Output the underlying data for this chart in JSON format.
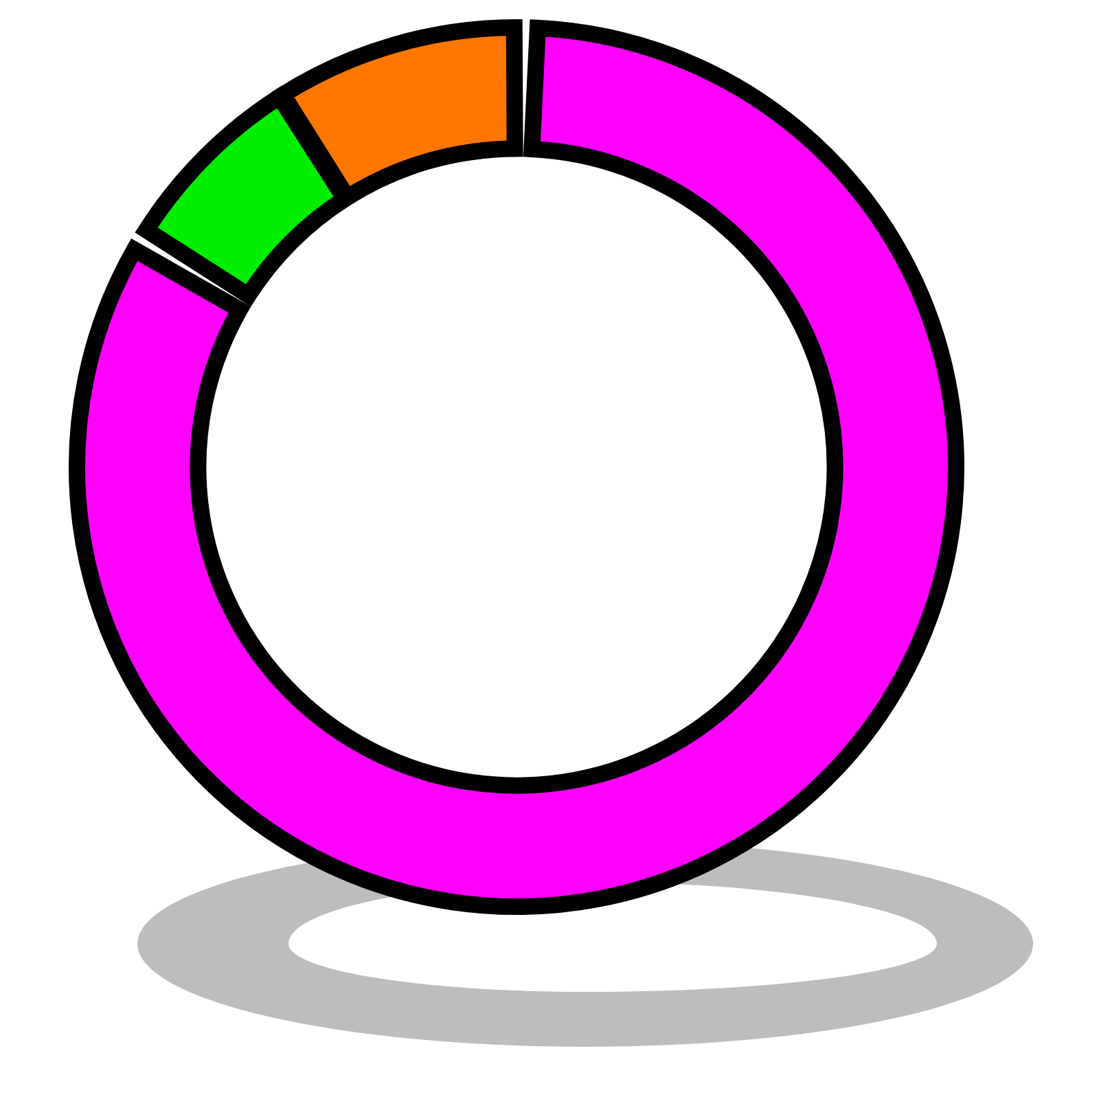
{
  "chart_data": {
    "type": "donut",
    "categories": [
      null,
      null,
      null
    ],
    "values": [
      84,
      7,
      9
    ],
    "colors": [
      "#ff00ff",
      "#00ee00",
      "#ff7700"
    ],
    "legend": false
  }
}
